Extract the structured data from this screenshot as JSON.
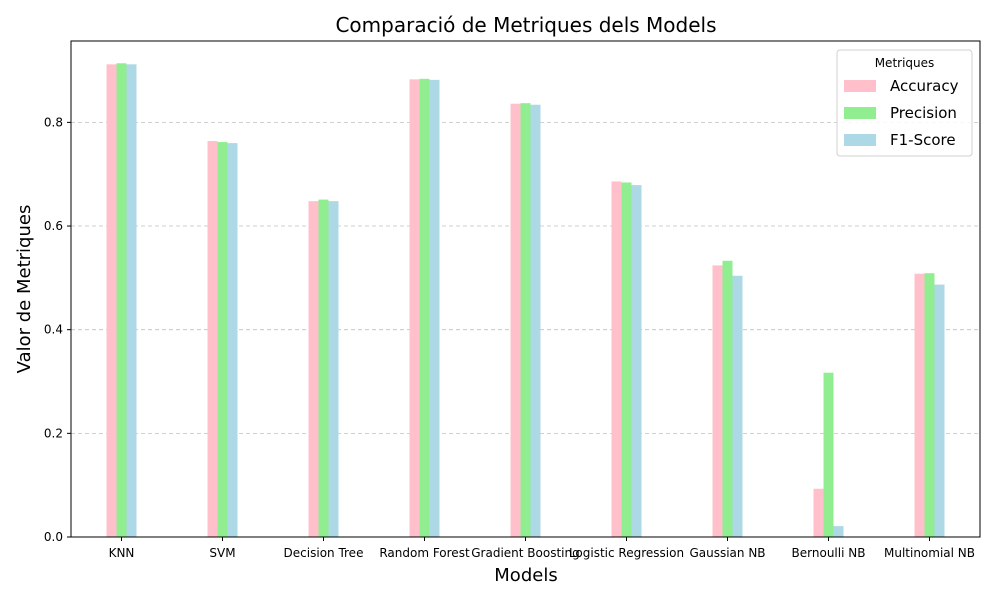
{
  "chart_data": {
    "type": "bar",
    "title": "Comparació de Metriques dels Models",
    "xlabel": "Models",
    "ylabel": "Valor de Metriques",
    "categories": [
      "KNN",
      "SVM",
      "Decision Tree",
      "Random Forest",
      "Gradient Boosting",
      "Logistic Regression",
      "Gaussian NB",
      "Bernoulli NB",
      "Multinomial NB"
    ],
    "series": [
      {
        "name": "Accuracy",
        "color": "#ffc0cb",
        "values": [
          0.912,
          0.764,
          0.648,
          0.883,
          0.836,
          0.686,
          0.524,
          0.093,
          0.508
        ]
      },
      {
        "name": "Precision",
        "color": "#90ee90",
        "values": [
          0.914,
          0.762,
          0.651,
          0.884,
          0.837,
          0.684,
          0.533,
          0.317,
          0.509
        ]
      },
      {
        "name": "F1-Score",
        "color": "#add8e6",
        "values": [
          0.912,
          0.76,
          0.648,
          0.882,
          0.834,
          0.679,
          0.504,
          0.021,
          0.487
        ]
      }
    ],
    "ylim": [
      0,
      0.957
    ],
    "yticks": [
      0.0,
      0.2,
      0.4,
      0.6,
      0.8
    ],
    "ytick_labels": [
      "0.0",
      "0.2",
      "0.4",
      "0.6",
      "0.8"
    ],
    "grid": {
      "axis": "y",
      "style": "dashed",
      "color": "#c0c0c0"
    },
    "legend": {
      "title": "Metriques",
      "placement": "top-right"
    }
  }
}
